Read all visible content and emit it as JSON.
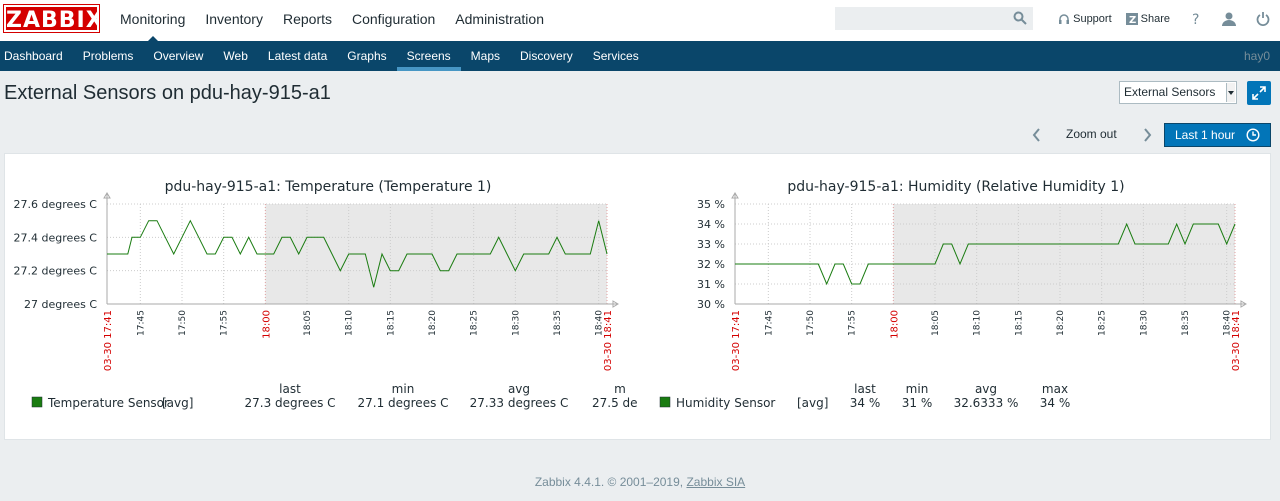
{
  "brand": {
    "logo": "ZABBIX",
    "logo_color": "#d40000"
  },
  "main_menu": [
    {
      "label": "Monitoring",
      "active": true
    },
    {
      "label": "Inventory"
    },
    {
      "label": "Reports"
    },
    {
      "label": "Configuration"
    },
    {
      "label": "Administration"
    }
  ],
  "search": {
    "value": "",
    "placeholder": ""
  },
  "top_links": {
    "support": "Support",
    "share": "Share",
    "help_icon": "help-icon",
    "profile_icon": "user-icon",
    "logout_icon": "power-icon"
  },
  "sub_menu": [
    {
      "label": "Dashboard"
    },
    {
      "label": "Problems"
    },
    {
      "label": "Overview"
    },
    {
      "label": "Web"
    },
    {
      "label": "Latest data"
    },
    {
      "label": "Graphs"
    },
    {
      "label": "Screens",
      "active": true
    },
    {
      "label": "Maps"
    },
    {
      "label": "Discovery"
    },
    {
      "label": "Services"
    }
  ],
  "user": "hay0",
  "page": {
    "title": "External Sensors on pdu-hay-915-a1",
    "screen_select": "External Sensors",
    "zoom_out": "Zoom out",
    "period": "Last 1 hour"
  },
  "chart_data": [
    {
      "type": "line",
      "title": "pdu-hay-915-a1: Temperature (Temperature 1)",
      "y_ticks": [
        "27.6 degrees C",
        "27.4 degrees C",
        "27.2 degrees C",
        "27 degrees C"
      ],
      "ylim": [
        27,
        27.6
      ],
      "x_ticks": [
        "17:45",
        "17:50",
        "17:55",
        "18:05",
        "18:10",
        "18:15",
        "18:20",
        "18:25",
        "18:30",
        "18:35",
        "18:40"
      ],
      "x_red_ticks": [
        "03-30 17:41",
        "18:00",
        "03-30 18:41"
      ],
      "x_range_minutes": [
        0,
        60
      ],
      "shaded_from_minute": 19,
      "series": [
        {
          "name": "Temperature Sensor",
          "color": "#1a7c11",
          "x": [
            0,
            2.5,
            3,
            4,
            5,
            6,
            7,
            8,
            9,
            10,
            11,
            12,
            13,
            14,
            15,
            16,
            17,
            18,
            19,
            20,
            21,
            22,
            23,
            24,
            25,
            26,
            27,
            28,
            29,
            30,
            31,
            32,
            33,
            34,
            35,
            36,
            37,
            38,
            39,
            40,
            41,
            42,
            43,
            44,
            45,
            46,
            47,
            48,
            49,
            50,
            51,
            52,
            53,
            54,
            55,
            56,
            57,
            58,
            59,
            60
          ],
          "values": [
            27.3,
            27.3,
            27.4,
            27.4,
            27.5,
            27.5,
            27.4,
            27.3,
            27.4,
            27.5,
            27.4,
            27.3,
            27.3,
            27.4,
            27.4,
            27.3,
            27.4,
            27.3,
            27.3,
            27.3,
            27.4,
            27.4,
            27.3,
            27.4,
            27.4,
            27.4,
            27.3,
            27.2,
            27.3,
            27.3,
            27.3,
            27.1,
            27.3,
            27.2,
            27.2,
            27.3,
            27.3,
            27.3,
            27.3,
            27.2,
            27.2,
            27.3,
            27.3,
            27.3,
            27.3,
            27.3,
            27.4,
            27.3,
            27.2,
            27.3,
            27.3,
            27.3,
            27.3,
            27.4,
            27.3,
            27.3,
            27.3,
            27.3,
            27.5,
            27.3
          ],
          "legend": {
            "func": "[avg]",
            "last": "27.3 degrees C",
            "min": "27.1 degrees C",
            "avg": "27.33 degrees C",
            "max": "27.5 de"
          }
        }
      ]
    },
    {
      "type": "line",
      "title": "pdu-hay-915-a1: Humidity (Relative Humidity 1)",
      "y_ticks": [
        "35 %",
        "34 %",
        "33 %",
        "32 %",
        "31 %",
        "30 %"
      ],
      "ylim": [
        30,
        35
      ],
      "x_ticks": [
        "17:45",
        "17:50",
        "17:55",
        "18:05",
        "18:10",
        "18:15",
        "18:20",
        "18:25",
        "18:30",
        "18:35",
        "18:40"
      ],
      "x_red_ticks": [
        "03-30 17:41",
        "18:00",
        "03-30 18:41"
      ],
      "x_range_minutes": [
        0,
        60
      ],
      "shaded_from_minute": 19,
      "series": [
        {
          "name": "Humidity Sensor",
          "color": "#1a7c11",
          "x": [
            0,
            10,
            11,
            12,
            13,
            14,
            15,
            16,
            17,
            18,
            24,
            25,
            26,
            27,
            28,
            29,
            30,
            35,
            45,
            46,
            47,
            48,
            49,
            50,
            51,
            52,
            53,
            54,
            55,
            56,
            57,
            58,
            59,
            60
          ],
          "values": [
            32,
            32,
            31,
            32,
            32,
            31,
            31,
            32,
            32,
            32,
            32,
            33,
            33,
            32,
            33,
            33,
            33,
            33,
            33,
            33,
            34,
            33,
            33,
            33,
            33,
            33,
            34,
            33,
            34,
            34,
            34,
            34,
            33,
            34
          ],
          "legend": {
            "func": "[avg]",
            "last": "34 %",
            "min": "31 %",
            "avg": "32.6333 %",
            "max": "34 %"
          }
        }
      ]
    }
  ],
  "legend_headers": {
    "last": "last",
    "min": "min",
    "avg": "avg",
    "max": "max",
    "max_cut": "m"
  },
  "footer": {
    "text": "Zabbix 4.4.1. © 2001–2019,",
    "link": "Zabbix SIA"
  }
}
